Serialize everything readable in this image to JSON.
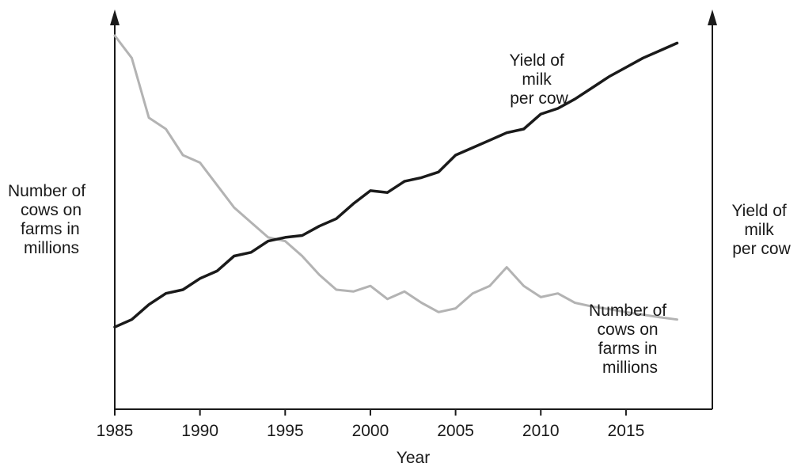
{
  "chart_data": {
    "type": "line",
    "title": "",
    "xlabel": "Year",
    "ylabel_left": [
      "Number of",
      "cows on",
      "farms in",
      "millions"
    ],
    "ylabel_right": [
      "Yield of",
      "milk",
      "per cow"
    ],
    "xlim": [
      1985,
      2019
    ],
    "x_ticks": [
      1985,
      1990,
      1995,
      2000,
      2005,
      2010,
      2015
    ],
    "x_tick_labels": [
      "1985",
      "1990",
      "1995",
      "2000",
      "2005",
      "2010",
      "2015"
    ],
    "grid": false,
    "y_scale": "unlabeled (relative)",
    "series": [
      {
        "axis": "left",
        "color": "#b3b3b3",
        "annotation": [
          "Number of",
          "cows on",
          "farms in",
          "millions"
        ],
        "x": [
          1985,
          1986,
          1987,
          1988,
          1989,
          1990,
          1991,
          1992,
          1993,
          1994,
          1995,
          1996,
          1997,
          1998,
          1999,
          2000,
          2001,
          2002,
          2003,
          2004,
          2005,
          2006,
          2007,
          2008,
          2009,
          2010,
          2011,
          2012,
          2013,
          2014,
          2015,
          2016,
          2017,
          2018
        ],
        "values": [
          100,
          94,
          78,
          75,
          68,
          66,
          60,
          54,
          50,
          46,
          45,
          41,
          36,
          32,
          31.5,
          33,
          29.5,
          31.5,
          28.5,
          26,
          27,
          31,
          33,
          38,
          33,
          30,
          31,
          28.5,
          27.5,
          26.8,
          26,
          25.3,
          24.6,
          24
        ]
      },
      {
        "axis": "right",
        "color": "#1a1a1a",
        "annotation": [
          "Yield of",
          "milk",
          "per cow"
        ],
        "x": [
          1985,
          1986,
          1987,
          1988,
          1989,
          1990,
          1991,
          1992,
          1993,
          1994,
          1995,
          1996,
          1997,
          1998,
          1999,
          2000,
          2001,
          2002,
          2003,
          2004,
          2005,
          2006,
          2007,
          2008,
          2009,
          2010,
          2011,
          2012,
          2013,
          2014,
          2015,
          2016,
          2017,
          2018
        ],
        "values": [
          22,
          24,
          28,
          31,
          32,
          35,
          37,
          41,
          42,
          45,
          46,
          46.5,
          49,
          51,
          55,
          58.5,
          58,
          61,
          62,
          63.5,
          68,
          70,
          72,
          74,
          75,
          79,
          80.5,
          83,
          86,
          89,
          91.5,
          94,
          96,
          98
        ]
      }
    ]
  }
}
